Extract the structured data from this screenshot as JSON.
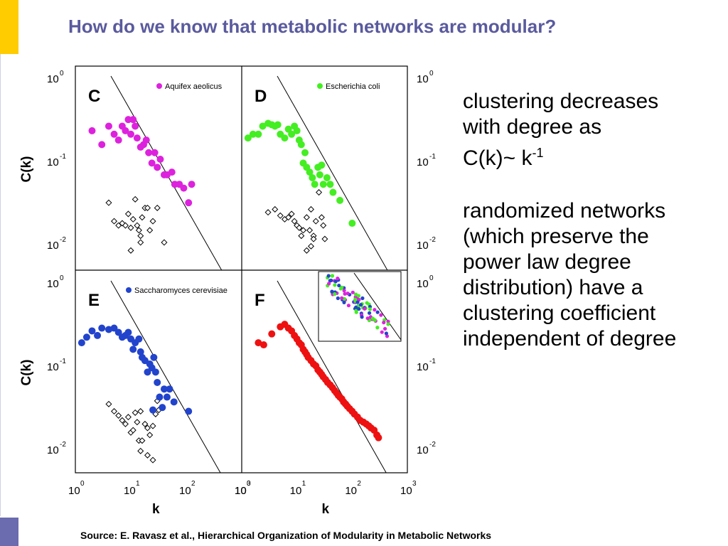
{
  "slide": {
    "title": "How do we know that metabolic networks are modular?",
    "colors": {
      "title": "#5a5a9e",
      "accent_bar": "#ffcc00",
      "footer_bar": "#6b6bb0"
    },
    "text": {
      "line1": "clustering decreases",
      "line2": "with degree as",
      "formula_base": "C(k)~ k",
      "formula_exp": "-1",
      "para2": [
        "randomized networks",
        "(which preserve the",
        "power law degree",
        "distribution) have a",
        "clustering coefficient",
        "independent of degree"
      ]
    },
    "source": "Source: E. Ravasz et al., Hierarchical Organization of Modularity in Metabolic Networks"
  },
  "chart_data": {
    "type": "scatter",
    "xscale": "log",
    "yscale": "log",
    "xlim": [
      1,
      1000
    ],
    "ylim": [
      0.005,
      1
    ],
    "xlabel": "k",
    "ylabel": "C(k)",
    "xticks": [
      "10",
      "10",
      "10",
      "10"
    ],
    "xtick_exps": [
      "0",
      "1",
      "2",
      "3"
    ],
    "yticks": [
      "10",
      "10",
      "10"
    ],
    "ytick_exps": [
      "0",
      "-1",
      "-2"
    ],
    "panels": [
      {
        "letter": "C",
        "legend": "Aquifex aeolicus",
        "color": "#dd22dd",
        "series_points": [
          [
            2,
            0.22
          ],
          [
            3,
            0.15
          ],
          [
            4,
            0.25
          ],
          [
            5,
            0.2
          ],
          [
            6,
            0.17
          ],
          [
            7,
            0.25
          ],
          [
            8,
            0.22
          ],
          [
            9,
            0.3
          ],
          [
            10,
            0.2
          ],
          [
            11,
            0.3
          ],
          [
            12,
            0.25
          ],
          [
            13,
            0.18
          ],
          [
            15,
            0.14
          ],
          [
            17,
            0.15
          ],
          [
            19,
            0.17
          ],
          [
            21,
            0.12
          ],
          [
            24,
            0.09
          ],
          [
            27,
            0.12
          ],
          [
            30,
            0.08
          ],
          [
            34,
            0.1
          ],
          [
            40,
            0.065
          ],
          [
            45,
            0.065
          ],
          [
            55,
            0.07
          ],
          [
            62,
            0.05
          ],
          [
            75,
            0.05
          ],
          [
            90,
            0.045
          ],
          [
            110,
            0.03
          ],
          [
            125,
            0.05
          ]
        ],
        "random_points": [
          [
            4,
            0.03
          ],
          [
            5,
            0.018
          ],
          [
            6,
            0.016
          ],
          [
            7,
            0.017
          ],
          [
            8,
            0.016
          ],
          [
            9,
            0.022
          ],
          [
            10,
            0.015
          ],
          [
            11,
            0.019
          ],
          [
            12,
            0.033
          ],
          [
            13,
            0.016
          ],
          [
            14,
            0.014
          ],
          [
            15,
            0.012
          ],
          [
            16,
            0.02
          ],
          [
            18,
            0.026
          ],
          [
            20,
            0.026
          ],
          [
            22,
            0.014
          ],
          [
            25,
            0.018
          ],
          [
            30,
            0.026
          ],
          [
            10,
            0.008
          ],
          [
            15,
            0.01
          ],
          [
            40,
            0.01
          ]
        ]
      },
      {
        "letter": "D",
        "legend": "Escherichia coli",
        "color": "#44ee22",
        "series_points": [
          [
            1.3,
            0.18
          ],
          [
            1.6,
            0.2
          ],
          [
            2,
            0.2
          ],
          [
            2.4,
            0.25
          ],
          [
            3,
            0.27
          ],
          [
            3.5,
            0.26
          ],
          [
            4,
            0.25
          ],
          [
            4.5,
            0.26
          ],
          [
            5,
            0.2
          ],
          [
            6,
            0.18
          ],
          [
            7,
            0.23
          ],
          [
            8,
            0.2
          ],
          [
            9,
            0.25
          ],
          [
            10,
            0.22
          ],
          [
            11,
            0.17
          ],
          [
            12,
            0.15
          ],
          [
            14,
            0.12
          ],
          [
            13,
            0.09
          ],
          [
            15,
            0.08
          ],
          [
            17,
            0.07
          ],
          [
            19,
            0.06
          ],
          [
            21,
            0.05
          ],
          [
            24,
            0.08
          ],
          [
            26,
            0.065
          ],
          [
            28,
            0.085
          ],
          [
            30,
            0.05
          ],
          [
            35,
            0.06
          ],
          [
            40,
            0.05
          ],
          [
            45,
            0.04
          ],
          [
            60,
            0.032
          ],
          [
            100,
            0.017
          ]
        ],
        "random_points": [
          [
            3,
            0.023
          ],
          [
            4,
            0.025
          ],
          [
            5,
            0.021
          ],
          [
            6,
            0.019
          ],
          [
            7,
            0.02
          ],
          [
            8,
            0.022
          ],
          [
            9,
            0.018
          ],
          [
            10,
            0.016
          ],
          [
            11,
            0.015
          ],
          [
            12,
            0.012
          ],
          [
            13,
            0.014
          ],
          [
            15,
            0.02
          ],
          [
            17,
            0.014
          ],
          [
            18,
            0.025
          ],
          [
            20,
            0.012
          ],
          [
            22,
            0.018
          ],
          [
            25,
            0.04
          ],
          [
            28,
            0.02
          ],
          [
            30,
            0.016
          ],
          [
            32,
            0.011
          ],
          [
            15,
            0.008
          ],
          [
            18,
            0.009
          ],
          [
            20,
            0.011
          ]
        ]
      },
      {
        "letter": "E",
        "legend": "Saccharomyces cerevisiae",
        "color": "#2244cc",
        "series_points": [
          [
            1.3,
            0.18
          ],
          [
            1.6,
            0.21
          ],
          [
            2,
            0.25
          ],
          [
            2.5,
            0.22
          ],
          [
            3,
            0.27
          ],
          [
            4,
            0.26
          ],
          [
            5,
            0.27
          ],
          [
            6,
            0.24
          ],
          [
            7,
            0.21
          ],
          [
            8,
            0.22
          ],
          [
            9,
            0.24
          ],
          [
            10,
            0.2
          ],
          [
            11,
            0.15
          ],
          [
            12,
            0.18
          ],
          [
            14,
            0.2
          ],
          [
            15,
            0.14
          ],
          [
            16,
            0.12
          ],
          [
            18,
            0.11
          ],
          [
            20,
            0.08
          ],
          [
            22,
            0.1
          ],
          [
            24,
            0.09
          ],
          [
            26,
            0.12
          ],
          [
            28,
            0.08
          ],
          [
            30,
            0.06
          ],
          [
            33,
            0.04
          ],
          [
            37,
            0.03
          ],
          [
            40,
            0.05
          ],
          [
            45,
            0.04
          ],
          [
            50,
            0.05
          ],
          [
            60,
            0.035
          ],
          [
            110,
            0.027
          ],
          [
            25,
            0.028
          ]
        ],
        "random_points": [
          [
            4,
            0.033
          ],
          [
            5,
            0.027
          ],
          [
            6,
            0.024
          ],
          [
            7,
            0.021
          ],
          [
            8,
            0.019
          ],
          [
            9,
            0.023
          ],
          [
            10,
            0.015
          ],
          [
            11,
            0.016
          ],
          [
            12,
            0.026
          ],
          [
            13,
            0.02
          ],
          [
            14,
            0.012
          ],
          [
            15,
            0.027
          ],
          [
            16,
            0.012
          ],
          [
            18,
            0.019
          ],
          [
            20,
            0.017
          ],
          [
            22,
            0.014
          ],
          [
            25,
            0.018
          ],
          [
            28,
            0.025
          ],
          [
            30,
            0.036
          ],
          [
            32,
            0.028
          ],
          [
            15,
            0.009
          ],
          [
            20,
            0.008
          ],
          [
            25,
            0.007
          ]
        ]
      },
      {
        "letter": "F",
        "legend": "",
        "color": "#ee1111",
        "series_points": [
          [
            2,
            0.18
          ],
          [
            2.5,
            0.17
          ],
          [
            3.5,
            0.23
          ],
          [
            5,
            0.28
          ],
          [
            6,
            0.3
          ],
          [
            7,
            0.27
          ],
          [
            8,
            0.25
          ],
          [
            9,
            0.22
          ],
          [
            10,
            0.2
          ],
          [
            11,
            0.18
          ],
          [
            12,
            0.17
          ],
          [
            13,
            0.15
          ],
          [
            14,
            0.14
          ],
          [
            15,
            0.13
          ],
          [
            16,
            0.12
          ],
          [
            18,
            0.11
          ],
          [
            20,
            0.1
          ],
          [
            22,
            0.095
          ],
          [
            24,
            0.085
          ],
          [
            26,
            0.08
          ],
          [
            28,
            0.075
          ],
          [
            30,
            0.07
          ],
          [
            33,
            0.065
          ],
          [
            36,
            0.06
          ],
          [
            40,
            0.056
          ],
          [
            44,
            0.052
          ],
          [
            48,
            0.048
          ],
          [
            52,
            0.045
          ],
          [
            56,
            0.042
          ],
          [
            60,
            0.04
          ],
          [
            65,
            0.038
          ],
          [
            70,
            0.035
          ],
          [
            76,
            0.033
          ],
          [
            82,
            0.031
          ],
          [
            90,
            0.029
          ],
          [
            100,
            0.027
          ],
          [
            110,
            0.025
          ],
          [
            125,
            0.023
          ],
          [
            140,
            0.021
          ],
          [
            160,
            0.02
          ],
          [
            180,
            0.019
          ],
          [
            200,
            0.018
          ],
          [
            220,
            0.017
          ],
          [
            250,
            0.016
          ],
          [
            280,
            0.014
          ],
          [
            300,
            0.013
          ]
        ],
        "random_points": []
      }
    ]
  }
}
